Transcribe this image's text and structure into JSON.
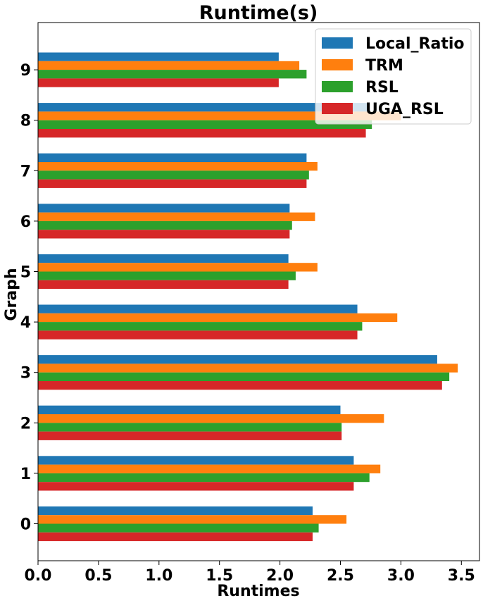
{
  "chart_data": {
    "type": "bar",
    "orientation": "horizontal",
    "title": "Runtime(s)",
    "xlabel": "Runtimes",
    "ylabel": "Graph",
    "categories": [
      "0",
      "1",
      "2",
      "3",
      "4",
      "5",
      "6",
      "7",
      "8",
      "9"
    ],
    "xlim": [
      0.0,
      3.6
    ],
    "xticks": [
      "0.0",
      "0.5",
      "1.0",
      "1.5",
      "2.0",
      "2.5",
      "3.0",
      "3.5"
    ],
    "legend_position": "top-right",
    "grid": false,
    "series": [
      {
        "name": "Local_Ratio",
        "color": "#1f77b4",
        "values": [
          2.27,
          2.61,
          2.5,
          3.3,
          2.64,
          2.07,
          2.08,
          2.22,
          2.72,
          1.99
        ]
      },
      {
        "name": "TRM",
        "color": "#ff7f0e",
        "values": [
          2.55,
          2.83,
          2.86,
          3.47,
          2.97,
          2.31,
          2.29,
          2.31,
          3.0,
          2.16
        ]
      },
      {
        "name": "RSL",
        "color": "#2ca02c",
        "values": [
          2.32,
          2.74,
          2.51,
          3.4,
          2.68,
          2.13,
          2.1,
          2.24,
          2.76,
          2.22
        ]
      },
      {
        "name": "UGA_RSL",
        "color": "#d62728",
        "values": [
          2.27,
          2.61,
          2.51,
          3.34,
          2.64,
          2.07,
          2.08,
          2.22,
          2.71,
          1.99
        ]
      }
    ]
  }
}
